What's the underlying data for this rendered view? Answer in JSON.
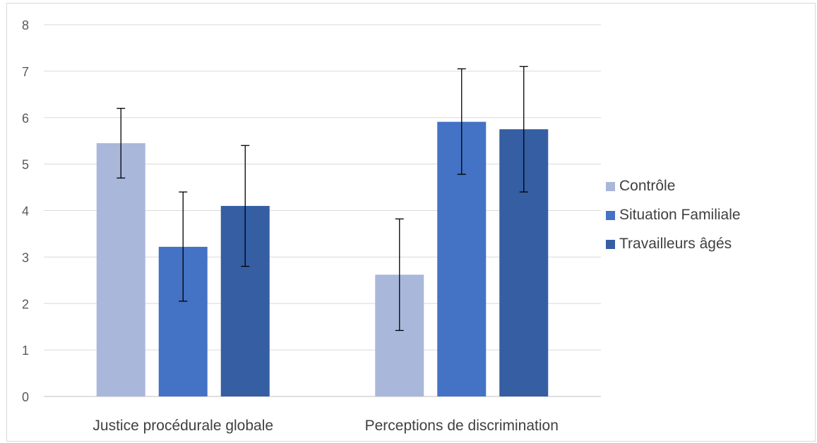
{
  "chart_data": {
    "type": "bar",
    "categories": [
      "Justice procédurale globale",
      "Perceptions de discrimination"
    ],
    "series": [
      {
        "name": "Contrôle",
        "color": "#a9b7db",
        "values": [
          5.45,
          2.62
        ],
        "error_low": [
          4.7,
          1.42
        ],
        "error_high": [
          6.2,
          3.82
        ]
      },
      {
        "name": "Situation Familiale",
        "color": "#4472c4",
        "values": [
          3.22,
          5.91
        ],
        "error_low": [
          2.05,
          4.78
        ],
        "error_high": [
          4.4,
          7.05
        ]
      },
      {
        "name": "Travailleurs âgés",
        "color": "#355ea3",
        "values": [
          4.1,
          5.75
        ],
        "error_low": [
          2.8,
          4.4
        ],
        "error_high": [
          5.4,
          7.1
        ]
      }
    ],
    "ylim": [
      0,
      8
    ],
    "yticks": [
      "0",
      "1",
      "2",
      "3",
      "4",
      "5",
      "6",
      "7",
      "8"
    ],
    "grid": true,
    "legend_position": "right"
  }
}
